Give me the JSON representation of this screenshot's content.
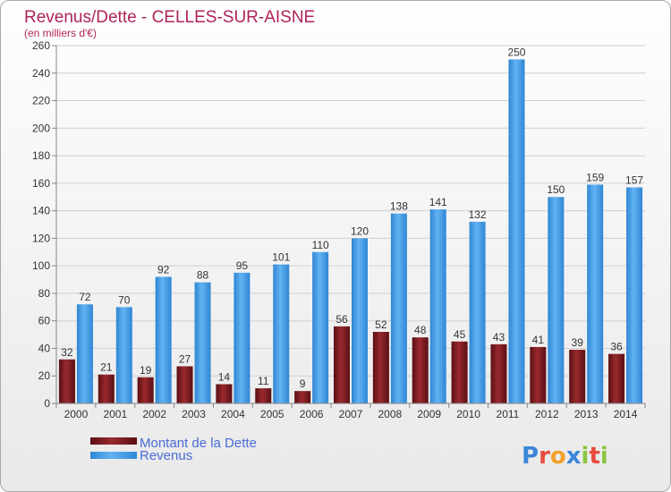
{
  "chart_data": {
    "type": "bar",
    "title": "Revenus/Dette - CELLES-SUR-AISNE",
    "subtitle": "(en milliers d'€)",
    "categories": [
      "2000",
      "2001",
      "2002",
      "2003",
      "2004",
      "2005",
      "2006",
      "2007",
      "2008",
      "2009",
      "2010",
      "2011",
      "2012",
      "2013",
      "2014"
    ],
    "series": [
      {
        "name": "Montant de la Dette",
        "values": [
          32,
          21,
          19,
          27,
          14,
          11,
          9,
          56,
          52,
          48,
          45,
          43,
          41,
          39,
          36
        ],
        "color": "#7a1c1c"
      },
      {
        "name": "Revenus",
        "values": [
          72,
          70,
          92,
          88,
          95,
          101,
          110,
          120,
          138,
          141,
          132,
          250,
          150,
          159,
          157
        ],
        "color": "#3a9be6"
      }
    ],
    "ylim": [
      0,
      260
    ],
    "yticks": [
      0,
      20,
      40,
      60,
      80,
      100,
      120,
      140,
      160,
      180,
      200,
      220,
      240,
      260
    ],
    "grid": true,
    "legend_position": "bottom-left"
  },
  "logo": {
    "text": "Proxiti",
    "letter_colors": [
      "#3a86d8",
      "#e84c3d",
      "#f2a12b",
      "#3a86d8",
      "#8bc53f",
      "#e84c3d",
      "#8bc53f"
    ]
  }
}
